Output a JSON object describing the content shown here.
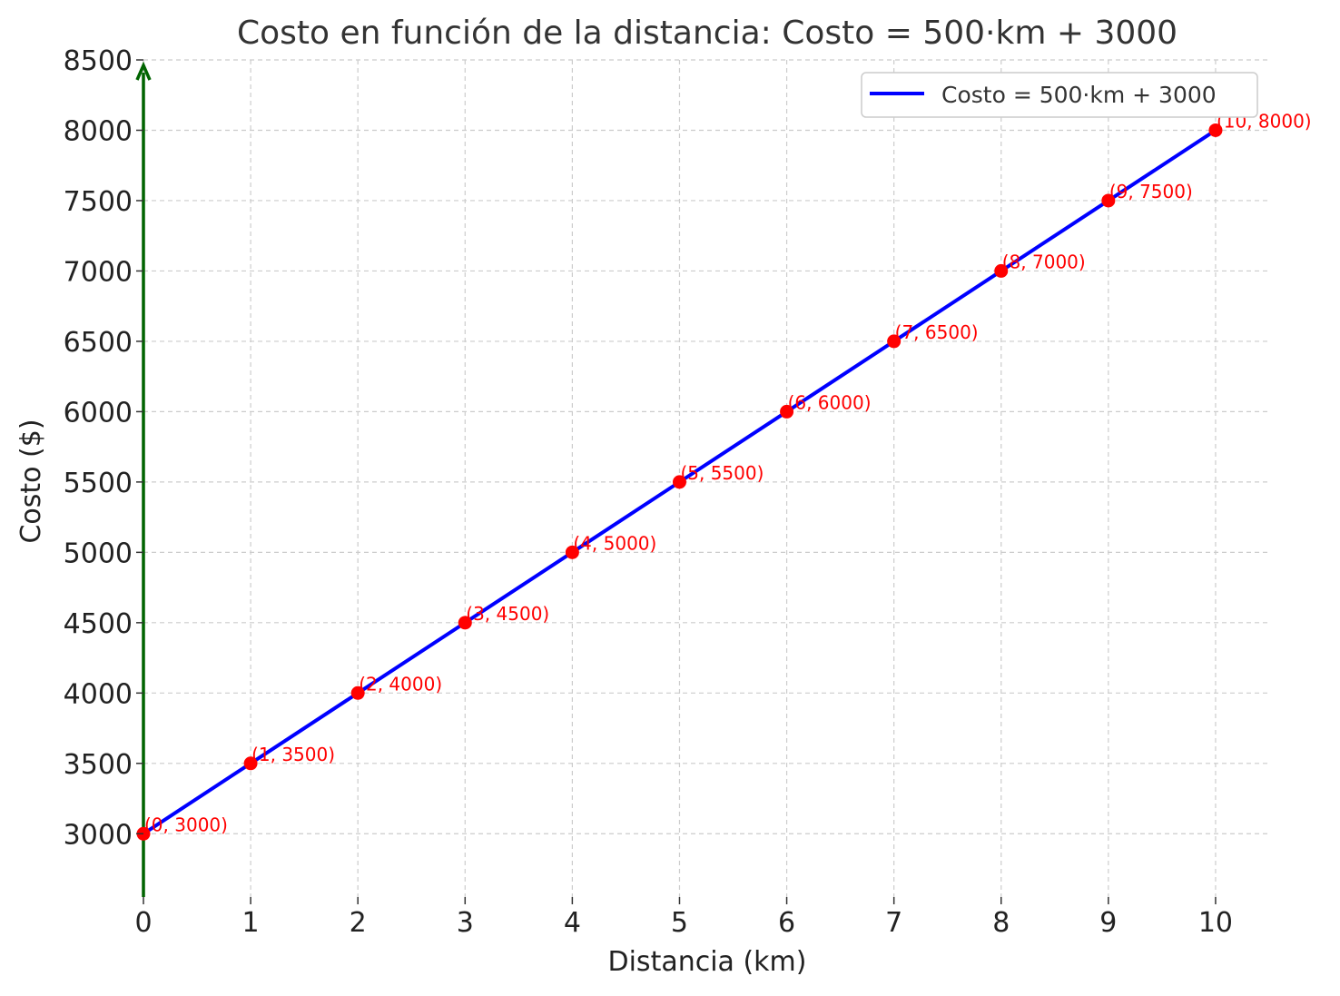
{
  "chart_data": {
    "type": "line",
    "title": "Costo en función de la distancia: Costo = 500·km + 3000",
    "xlabel": "Distancia (km)",
    "ylabel": "Costo ($)",
    "x": [
      0,
      1,
      2,
      3,
      4,
      5,
      6,
      7,
      8,
      9,
      10
    ],
    "series": [
      {
        "name": "Costo = 500·km + 3000",
        "values": [
          3000,
          3500,
          4000,
          4500,
          5000,
          5500,
          6000,
          6500,
          7000,
          7500,
          8000
        ],
        "color": "#0000ff"
      }
    ],
    "point_labels": [
      "(0, 3000)",
      "(1, 3500)",
      "(2, 4000)",
      "(3, 4500)",
      "(4, 5000)",
      "(5, 5500)",
      "(6, 6000)",
      "(7, 6500)",
      "(8, 7000)",
      "(9, 7500)",
      "(10, 8000)"
    ],
    "xlim": [
      0,
      10.5
    ],
    "ylim": [
      2550,
      8500
    ],
    "xticks": [
      0,
      1,
      2,
      3,
      4,
      5,
      6,
      7,
      8,
      9,
      10
    ],
    "yticks": [
      3000,
      3500,
      4000,
      4500,
      5000,
      5500,
      6000,
      6500,
      7000,
      7500,
      8000,
      8500
    ],
    "grid": true,
    "legend_position": "top-right",
    "marker_color": "#ff0000",
    "label_color": "#ff0000",
    "y_axis_arrow_color": "#006400"
  }
}
